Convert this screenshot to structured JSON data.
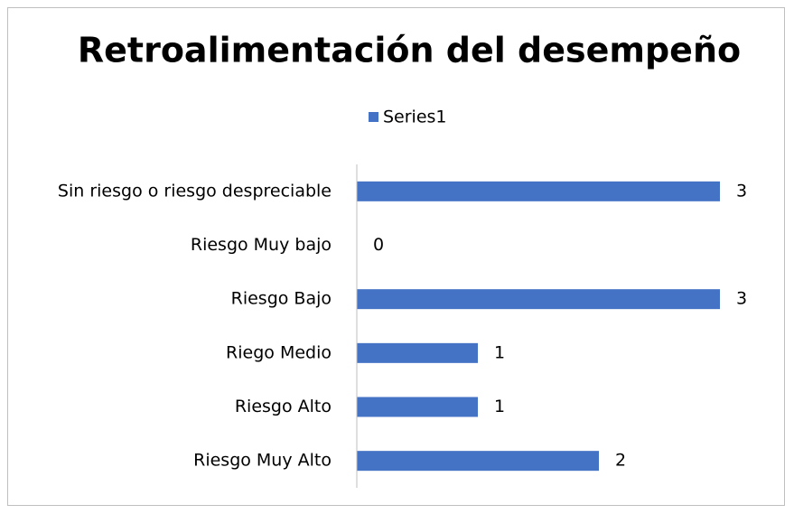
{
  "chart_data": {
    "type": "bar",
    "orientation": "horizontal",
    "title": "Retroalimentación del desempeño",
    "categories": [
      "Sin riesgo o riesgo despreciable",
      "Riesgo Muy bajo",
      "Riesgo Bajo",
      "Riego Medio",
      "Riesgo Alto",
      "Riesgo Muy Alto"
    ],
    "series": [
      {
        "name": "Series1",
        "color": "#4472c4",
        "values": [
          3,
          0,
          3,
          1,
          1,
          2
        ]
      }
    ],
    "legend": "top",
    "grid": false
  }
}
